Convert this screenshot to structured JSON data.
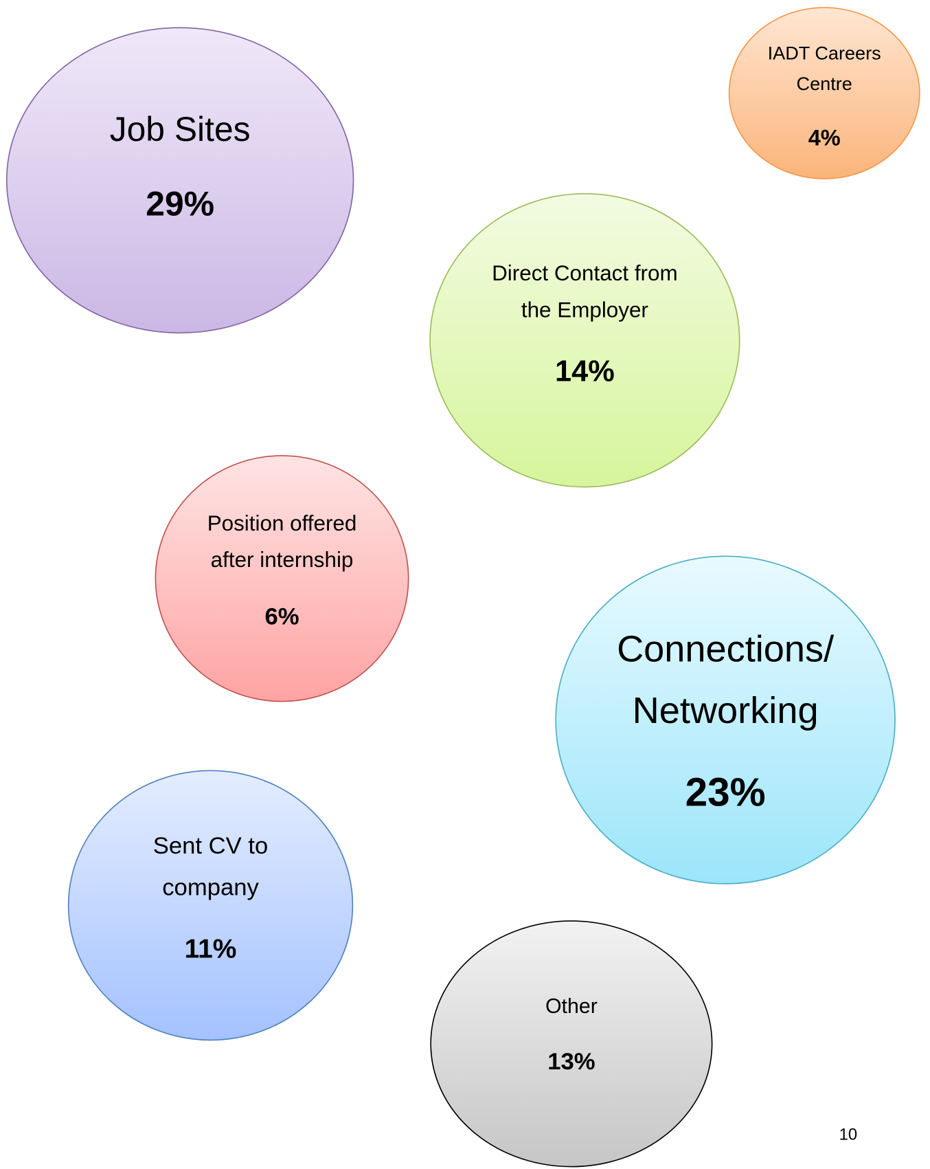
{
  "nodes": [
    {
      "label": [
        "Job Sites"
      ],
      "value": "29%"
    },
    {
      "label": [
        "IADT Careers",
        "Centre"
      ],
      "value": "4%"
    },
    {
      "label": [
        "Direct Contact from",
        "the Employer"
      ],
      "value": "14%"
    },
    {
      "label": [
        "Position offered",
        "after internship"
      ],
      "value": "6%"
    },
    {
      "label": [
        "Connections/",
        "Networking"
      ],
      "value": "23%"
    },
    {
      "label": [
        "Sent CV to",
        "company"
      ],
      "value": "11%"
    },
    {
      "label": [
        "Other"
      ],
      "value": "13%"
    }
  ],
  "page_number": "10"
}
